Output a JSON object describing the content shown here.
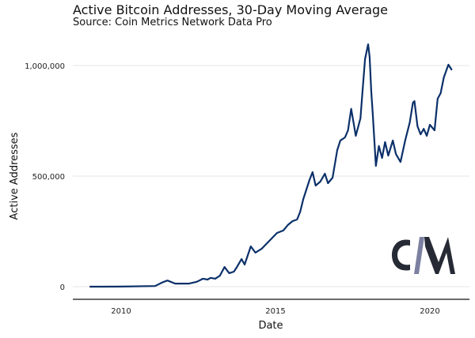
{
  "chart_data": {
    "type": "line",
    "title": "Active Bitcoin Addresses, 30-Day Moving Average",
    "subtitle": "Source: Coin Metrics Network Data Pro",
    "xlabel": "Date",
    "ylabel": "Active Addresses",
    "xlim": [
      2008.6,
      2021.3
    ],
    "ylim": [
      -30000,
      1120000
    ],
    "x_ticks": [
      2010,
      2015,
      2020
    ],
    "x_tick_labels": [
      "2010",
      "2015",
      "2020"
    ],
    "y_ticks": [
      0,
      500000,
      1000000
    ],
    "y_tick_labels": [
      "0",
      "500,000",
      "1,000,000"
    ],
    "grid": "horizontal",
    "legend": "none",
    "series": [
      {
        "name": "Active Addresses (30-day MA)",
        "color": "#0b3069",
        "x": [
          2009.0,
          2010.0,
          2011.1,
          2011.35,
          2011.5,
          2011.75,
          2012.2,
          2012.45,
          2012.65,
          2012.8,
          2012.9,
          2013.05,
          2013.2,
          2013.35,
          2013.5,
          2013.65,
          2013.75,
          2013.9,
          2014.0,
          2014.2,
          2014.35,
          2014.55,
          2014.8,
          2015.05,
          2015.25,
          2015.4,
          2015.55,
          2015.7,
          2015.8,
          2015.9,
          2016.1,
          2016.2,
          2016.3,
          2016.45,
          2016.6,
          2016.7,
          2016.85,
          2017.0,
          2017.1,
          2017.25,
          2017.35,
          2017.45,
          2017.55,
          2017.6,
          2017.75,
          2017.8,
          2017.9,
          2018.0,
          2018.05,
          2018.1,
          2018.15,
          2018.25,
          2018.35,
          2018.45,
          2018.55,
          2018.65,
          2018.8,
          2018.9,
          2019.05,
          2019.2,
          2019.35,
          2019.45,
          2019.5,
          2019.6,
          2019.7,
          2019.8,
          2019.9,
          2020.0,
          2020.15,
          2020.25,
          2020.35,
          2020.45,
          2020.6,
          2020.7
        ],
        "values": [
          0,
          500,
          3000,
          20000,
          28000,
          14000,
          14000,
          22000,
          36000,
          32000,
          40000,
          36000,
          50000,
          89000,
          61000,
          68000,
          89000,
          125000,
          100000,
          182000,
          154000,
          171000,
          207000,
          243000,
          254000,
          279000,
          296000,
          304000,
          339000,
          396000,
          482000,
          518000,
          457000,
          475000,
          511000,
          468000,
          493000,
          618000,
          661000,
          675000,
          707000,
          804000,
          725000,
          682000,
          761000,
          850000,
          1029000,
          1096000,
          1039000,
          886000,
          779000,
          546000,
          636000,
          582000,
          654000,
          593000,
          661000,
          600000,
          564000,
          661000,
          743000,
          832000,
          839000,
          725000,
          689000,
          714000,
          682000,
          732000,
          707000,
          850000,
          875000,
          946000,
          1004000,
          982000
        ]
      }
    ]
  },
  "logo": {
    "name": "Coin Metrics",
    "dark_color": "#262a35",
    "accent_color": "#7c80a0"
  }
}
